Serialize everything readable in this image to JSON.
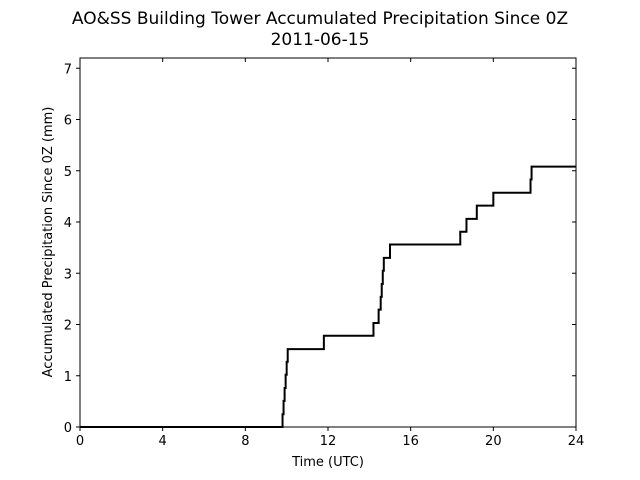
{
  "chart_data": {
    "type": "line",
    "title": "AO&SS Building Tower Accumulated Precipitation Since 0Z",
    "subtitle": "2011-06-15",
    "xlabel": "Time (UTC)",
    "ylabel": "Accumulated Precipitation Since 0Z (mm)",
    "xlim": [
      0,
      24
    ],
    "ylim": [
      0,
      7.2
    ],
    "xticks": [
      0,
      4,
      8,
      12,
      16,
      20,
      24
    ],
    "yticks": [
      0,
      1,
      2,
      3,
      4,
      5,
      6,
      7
    ],
    "grid": false,
    "series": [
      {
        "color": "#000000",
        "step": true,
        "x": [
          0,
          9.8,
          9.85,
          9.9,
          9.95,
          10.0,
          10.05,
          10.1,
          11.8,
          14.2,
          14.45,
          14.55,
          14.6,
          14.65,
          14.7,
          14.75,
          14.85,
          15.0,
          18.4,
          18.7,
          19.2,
          20.0,
          21.8,
          21.85,
          21.9,
          24
        ],
        "y": [
          0,
          0.25,
          0.51,
          0.76,
          1.02,
          1.27,
          1.52,
          1.52,
          1.78,
          2.03,
          2.29,
          2.54,
          2.79,
          3.05,
          3.3,
          3.3,
          3.3,
          3.56,
          3.81,
          4.06,
          4.32,
          4.57,
          4.83,
          5.08,
          5.08,
          5.08
        ]
      }
    ]
  }
}
